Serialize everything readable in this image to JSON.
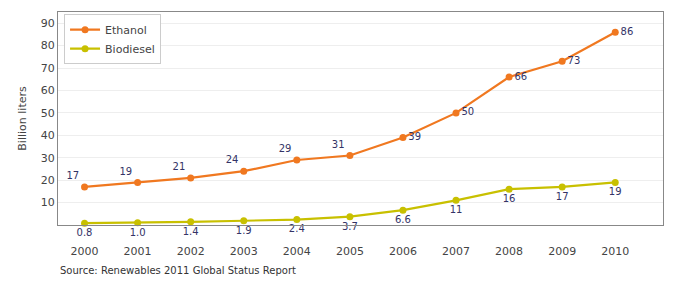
{
  "chart_data": {
    "type": "line",
    "ylabel": "Billion liters",
    "x": [
      2000,
      2001,
      2002,
      2003,
      2004,
      2005,
      2006,
      2007,
      2008,
      2009,
      2010
    ],
    "series": [
      {
        "name": "Ethanol",
        "color": "#F07820",
        "values": [
          17,
          19,
          21,
          24,
          29,
          31,
          39,
          50,
          66,
          73,
          86
        ]
      },
      {
        "name": "Biodiesel",
        "color": "#C8C000",
        "values": [
          0.8,
          1.0,
          1.4,
          1.9,
          2.4,
          3.7,
          6.6,
          11,
          16,
          17,
          19
        ],
        "value_labels": [
          "0.8",
          "1.0",
          "1.4",
          "1.9",
          "2.4",
          "3.7",
          "6.6",
          "11",
          "16",
          "17",
          "19"
        ]
      }
    ],
    "xlim": [
      1999.5,
      2010.9
    ],
    "xticks": [
      2000,
      2001,
      2002,
      2003,
      2004,
      2005,
      2006,
      2007,
      2008,
      2009,
      2010
    ],
    "ylim": [
      0,
      95
    ],
    "yticks": [
      10,
      20,
      30,
      40,
      50,
      60,
      70,
      80,
      90
    ],
    "grid": true,
    "legend": "upper left",
    "data_labels": true,
    "marker": "circle",
    "annotations": [
      "Source: Renewables 2011 Global Status Report"
    ]
  }
}
